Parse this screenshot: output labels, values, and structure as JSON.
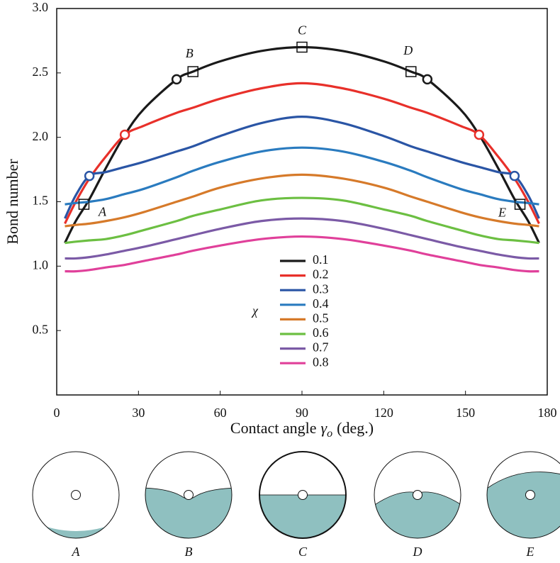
{
  "chart_data": {
    "type": "line",
    "xlabel": {
      "text": "Contact angle",
      "symbol": "γ",
      "subscript": "o",
      "unit": "(deg.)"
    },
    "ylabel": "Bond number",
    "legend_title": "χ",
    "xlim": [
      0,
      180
    ],
    "xticks": [
      0,
      30,
      60,
      90,
      120,
      150,
      180
    ],
    "ylim": [
      0,
      3
    ],
    "yticks": [
      0.5,
      {
        "value": 1,
        "label": "1.0"
      },
      1.5,
      {
        "value": 2,
        "label": "2.0"
      },
      2.5,
      {
        "value": 3,
        "label": "3.0"
      }
    ],
    "x": [
      3,
      7,
      12,
      18,
      25,
      32,
      44,
      50,
      60,
      75,
      90,
      105,
      120,
      130,
      136,
      148,
      155,
      162,
      168,
      173,
      177
    ],
    "series": [
      {
        "name": "0.1",
        "color": "#1a1a1a",
        "values": [
          1.18,
          1.35,
          1.52,
          1.76,
          2.02,
          2.22,
          2.45,
          2.51,
          2.59,
          2.67,
          2.7,
          2.67,
          2.59,
          2.51,
          2.45,
          2.22,
          2.02,
          1.76,
          1.52,
          1.35,
          1.18
        ]
      },
      {
        "name": "0.2",
        "color": "#e8302a",
        "values": [
          1.33,
          1.5,
          1.68,
          1.85,
          2.02,
          2.09,
          2.19,
          2.23,
          2.3,
          2.38,
          2.42,
          2.38,
          2.3,
          2.23,
          2.19,
          2.09,
          2.02,
          1.85,
          1.68,
          1.5,
          1.33
        ]
      },
      {
        "name": "0.3",
        "color": "#2a55a5",
        "values": [
          1.37,
          1.55,
          1.7,
          1.73,
          1.77,
          1.81,
          1.89,
          1.93,
          2.01,
          2.11,
          2.16,
          2.11,
          2.01,
          1.93,
          1.89,
          1.81,
          1.77,
          1.73,
          1.7,
          1.55,
          1.37
        ]
      },
      {
        "name": "0.4",
        "color": "#2a7bbf",
        "values": [
          1.48,
          1.49,
          1.5,
          1.52,
          1.56,
          1.6,
          1.69,
          1.74,
          1.81,
          1.89,
          1.92,
          1.89,
          1.81,
          1.74,
          1.69,
          1.6,
          1.56,
          1.52,
          1.5,
          1.49,
          1.48
        ]
      },
      {
        "name": "0.5",
        "color": "#d67a2a",
        "values": [
          1.31,
          1.32,
          1.33,
          1.35,
          1.38,
          1.42,
          1.5,
          1.54,
          1.61,
          1.68,
          1.71,
          1.68,
          1.61,
          1.54,
          1.5,
          1.42,
          1.38,
          1.35,
          1.33,
          1.32,
          1.31
        ]
      },
      {
        "name": "0.6",
        "color": "#6cbf42",
        "values": [
          1.18,
          1.19,
          1.2,
          1.21,
          1.24,
          1.28,
          1.35,
          1.39,
          1.44,
          1.51,
          1.53,
          1.51,
          1.44,
          1.39,
          1.35,
          1.28,
          1.24,
          1.21,
          1.2,
          1.19,
          1.18
        ]
      },
      {
        "name": "0.7",
        "color": "#7b5aa6",
        "values": [
          1.06,
          1.06,
          1.07,
          1.09,
          1.12,
          1.15,
          1.21,
          1.24,
          1.29,
          1.35,
          1.37,
          1.35,
          1.29,
          1.24,
          1.21,
          1.15,
          1.12,
          1.09,
          1.07,
          1.06,
          1.06
        ]
      },
      {
        "name": "0.8",
        "color": "#e0409a",
        "values": [
          0.96,
          0.96,
          0.97,
          0.99,
          1.01,
          1.04,
          1.09,
          1.12,
          1.16,
          1.21,
          1.23,
          1.21,
          1.16,
          1.12,
          1.09,
          1.04,
          1.01,
          0.99,
          0.97,
          0.96,
          0.96
        ]
      }
    ],
    "circles": [
      {
        "x": 12,
        "y": 1.7,
        "color": "#2a55a5"
      },
      {
        "x": 25,
        "y": 2.02,
        "color": "#e8302a"
      },
      {
        "x": 44,
        "y": 2.45,
        "color": "#1a1a1a"
      },
      {
        "x": 136,
        "y": 2.45,
        "color": "#1a1a1a"
      },
      {
        "x": 155,
        "y": 2.02,
        "color": "#e8302a"
      },
      {
        "x": 168,
        "y": 1.7,
        "color": "#2a55a5"
      }
    ],
    "squares": [
      {
        "label": "A",
        "x": 10,
        "y": 1.48
      },
      {
        "label": "B",
        "x": 50,
        "y": 2.51
      },
      {
        "label": "C",
        "x": 90,
        "y": 2.7
      },
      {
        "label": "D",
        "x": 130,
        "y": 2.51
      },
      {
        "label": "E",
        "x": 170,
        "y": 1.48
      }
    ]
  },
  "panels": {
    "labels": [
      "A",
      "B",
      "C",
      "D",
      "E"
    ]
  }
}
